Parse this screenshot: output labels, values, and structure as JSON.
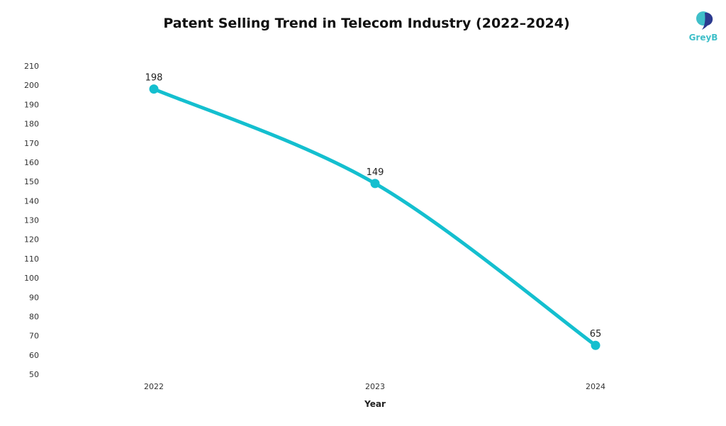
{
  "chart_data": {
    "type": "line",
    "title": "Patent Selling Trend in Telecom Industry (2022–2024)",
    "xlabel": "Year",
    "ylabel": "",
    "categories": [
      "2022",
      "2023",
      "2024"
    ],
    "values": [
      198,
      149,
      65
    ],
    "ylim": [
      50,
      210
    ],
    "yticks": [
      50,
      60,
      70,
      80,
      90,
      100,
      110,
      120,
      130,
      140,
      150,
      160,
      170,
      180,
      190,
      200,
      210
    ],
    "grid": false,
    "smooth": true,
    "color": "#14bfcf"
  },
  "logo": {
    "text": "GreyB",
    "color": "#3fbfc9",
    "accent": "#2b3a8f"
  }
}
